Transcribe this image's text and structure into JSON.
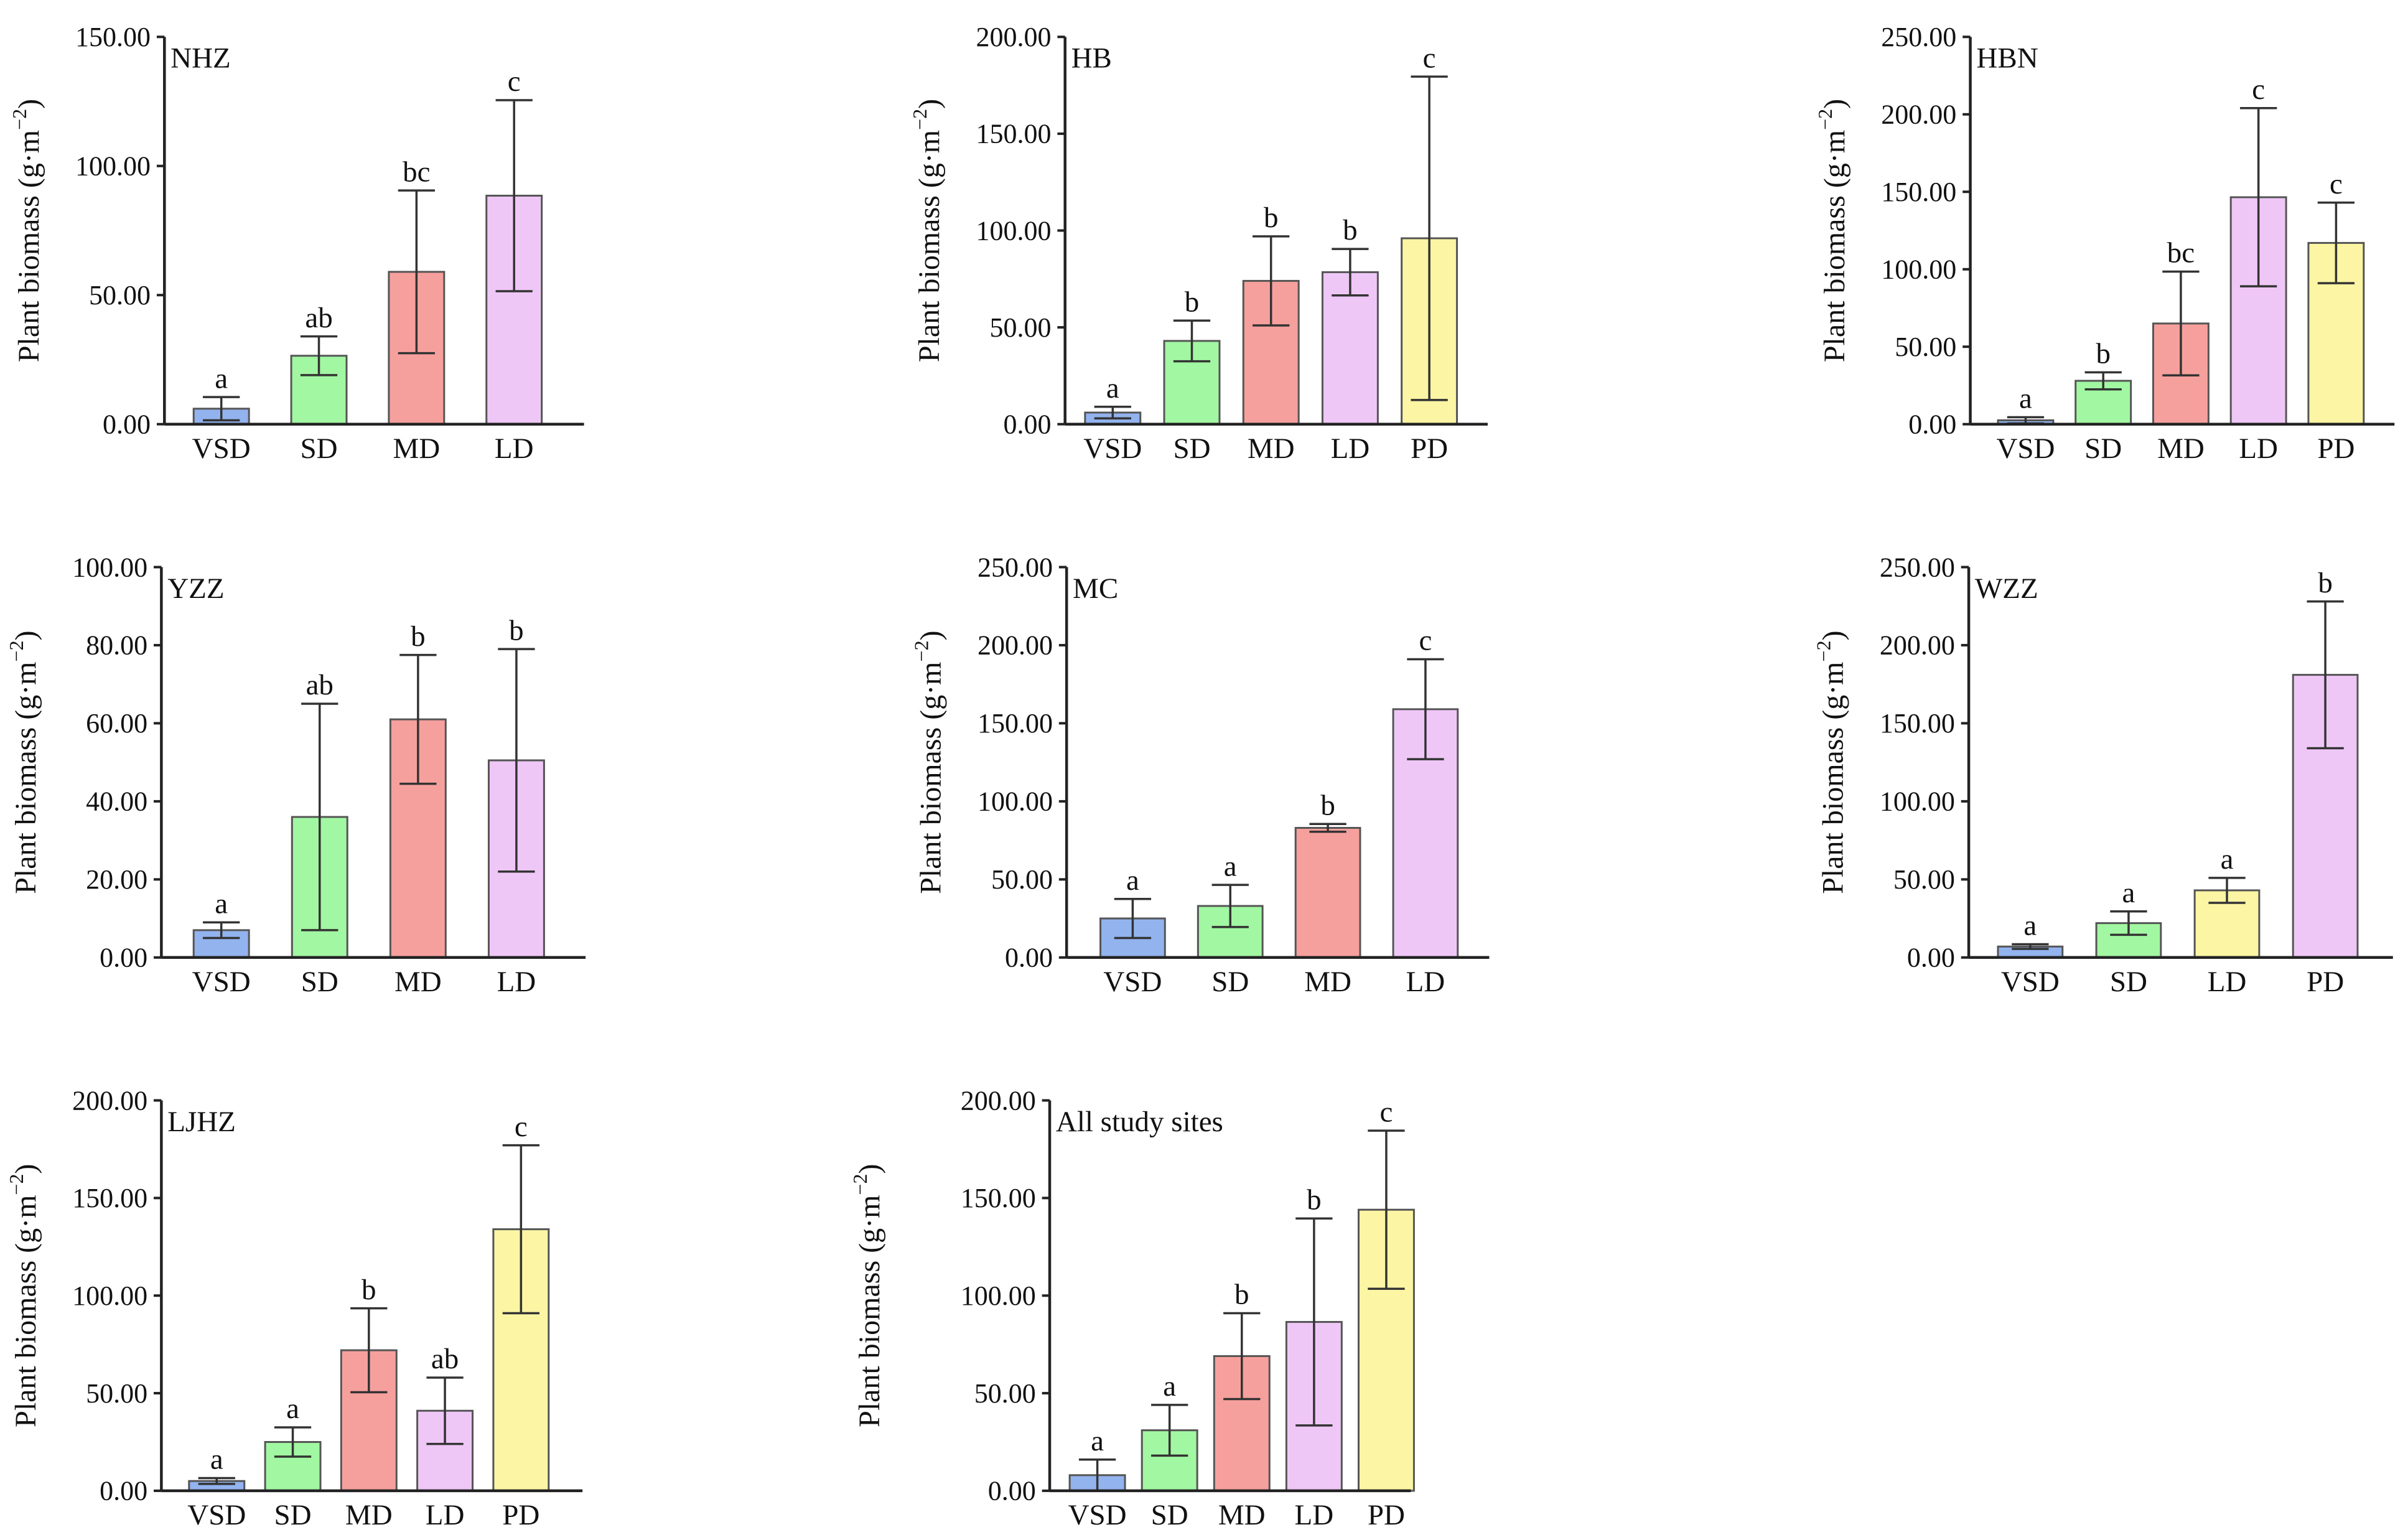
{
  "palette": {
    "VSD": "#92b3ee",
    "SD": "#a2f7a2",
    "MD": "#f6a09d",
    "LD": "#efc7f7",
    "LD_yellow": "#fbf5a4",
    "PD": "#fbf5a4",
    "axis": "#222222",
    "bar_edge": "#555555"
  },
  "ylabel_prefix": "Plant biomass (g·m",
  "ylabel_sup": "−2",
  "ylabel_suffix": ")",
  "chart_data": [
    {
      "type": "bar",
      "title": "NHZ",
      "xlabel": "",
      "ylabel": "Plant biomass (g·m−2)",
      "ylim": [
        0,
        150
      ],
      "yticks": [
        "0.00",
        "50.00",
        "100.00",
        "150.00"
      ],
      "categories": [
        "VSD",
        "SD",
        "MD",
        "LD"
      ],
      "values": [
        6,
        26.5,
        59,
        88.5
      ],
      "errors": [
        4.5,
        7.5,
        31.5,
        37
      ],
      "letters": [
        "a",
        "ab",
        "bc",
        "c"
      ],
      "colors": [
        "VSD",
        "SD",
        "MD",
        "LD"
      ]
    },
    {
      "type": "bar",
      "title": "HB",
      "xlabel": "",
      "ylabel": "Plant biomass (g·m−2)",
      "ylim": [
        0,
        200
      ],
      "yticks": [
        "0.00",
        "50.00",
        "100.00",
        "150.00",
        "200.00"
      ],
      "categories": [
        "VSD",
        "SD",
        "MD",
        "LD",
        "PD"
      ],
      "values": [
        6,
        43,
        74,
        78.5,
        96
      ],
      "errors": [
        3,
        10.5,
        23,
        12,
        83.5
      ],
      "letters": [
        "a",
        "b",
        "b",
        "b",
        "c"
      ],
      "colors": [
        "VSD",
        "SD",
        "MD",
        "LD",
        "PD"
      ]
    },
    {
      "type": "bar",
      "title": "HBN",
      "xlabel": "",
      "ylabel": "Plant biomass (g·m−2)",
      "ylim": [
        0,
        250
      ],
      "yticks": [
        "0.00",
        "50.00",
        "100.00",
        "150.00",
        "200.00",
        "250.00"
      ],
      "categories": [
        "VSD",
        "SD",
        "MD",
        "LD",
        "PD"
      ],
      "values": [
        2.5,
        28,
        65,
        146.5,
        117
      ],
      "errors": [
        2,
        5.5,
        33.5,
        57.5,
        26
      ],
      "letters": [
        "a",
        "b",
        "bc",
        "c",
        "c"
      ],
      "colors": [
        "VSD",
        "SD",
        "MD",
        "LD",
        "PD"
      ]
    },
    {
      "type": "bar",
      "title": "YZZ",
      "xlabel": "",
      "ylabel": "Plant biomass (g·m−2)",
      "ylim": [
        0,
        100
      ],
      "yticks": [
        "0.00",
        "20.00",
        "40.00",
        "60.00",
        "80.00",
        "100.00"
      ],
      "categories": [
        "VSD",
        "SD",
        "MD",
        "LD"
      ],
      "values": [
        7,
        36,
        61,
        50.5
      ],
      "errors": [
        2,
        29,
        16.5,
        28.5
      ],
      "letters": [
        "a",
        "ab",
        "b",
        "b"
      ],
      "colors": [
        "VSD",
        "SD",
        "MD",
        "LD"
      ]
    },
    {
      "type": "bar",
      "title": "MC",
      "xlabel": "",
      "ylabel": "Plant biomass (g·m−2)",
      "ylim": [
        0,
        250
      ],
      "yticks": [
        "0.00",
        "50.00",
        "100.00",
        "150.00",
        "200.00",
        "250.00"
      ],
      "categories": [
        "VSD",
        "SD",
        "MD",
        "LD"
      ],
      "values": [
        25,
        33,
        83,
        159
      ],
      "errors": [
        12.5,
        13.5,
        2.5,
        32
      ],
      "letters": [
        "a",
        "a",
        "b",
        "c"
      ],
      "colors": [
        "VSD",
        "SD",
        "MD",
        "LD"
      ]
    },
    {
      "type": "bar",
      "title": "WZZ",
      "xlabel": "",
      "ylabel": "Plant biomass (g·m−2)",
      "ylim": [
        0,
        250
      ],
      "yticks": [
        "0.00",
        "50.00",
        "100.00",
        "150.00",
        "200.00",
        "250.00"
      ],
      "categories": [
        "VSD",
        "SD",
        "LD",
        "PD"
      ],
      "values": [
        7,
        22,
        43,
        181
      ],
      "errors": [
        1.5,
        7.5,
        8,
        47
      ],
      "letters": [
        "a",
        "a",
        "a",
        "b"
      ],
      "colors": [
        "VSD",
        "SD",
        "LD_yellow",
        "LD"
      ]
    },
    {
      "type": "bar",
      "title": "LJHZ",
      "xlabel": "",
      "ylabel": "Plant biomass (g·m−2)",
      "ylim": [
        0,
        200
      ],
      "yticks": [
        "0.00",
        "50.00",
        "100.00",
        "150.00",
        "200.00"
      ],
      "categories": [
        "VSD",
        "SD",
        "MD",
        "LD",
        "PD"
      ],
      "values": [
        5,
        25,
        72,
        41,
        134
      ],
      "errors": [
        1.5,
        7.5,
        21.5,
        17,
        43
      ],
      "letters": [
        "a",
        "a",
        "b",
        "ab",
        "c"
      ],
      "colors": [
        "VSD",
        "SD",
        "MD",
        "LD",
        "PD"
      ]
    },
    {
      "type": "bar",
      "title": "All study sites",
      "xlabel": "",
      "ylabel": "Plant biomass (g·m −2)",
      "ylim": [
        0,
        200
      ],
      "yticks": [
        "0.00",
        "50.00",
        "100.00",
        "150.00",
        "200.00"
      ],
      "categories": [
        "VSD",
        "SD",
        "MD",
        "LD",
        "PD"
      ],
      "values": [
        8,
        31,
        69,
        86.5,
        144
      ],
      "errors": [
        8,
        13,
        22,
        53,
        40.5
      ],
      "letters": [
        "a",
        "a",
        "b",
        "b",
        "c"
      ],
      "colors": [
        "VSD",
        "SD",
        "MD",
        "LD",
        "PD"
      ]
    }
  ]
}
